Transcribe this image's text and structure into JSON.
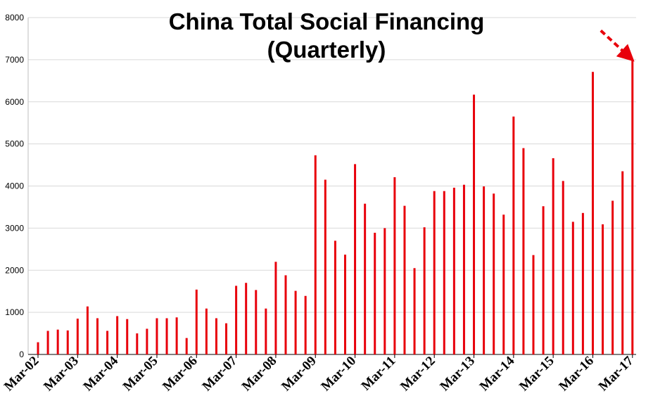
{
  "chart_data": {
    "type": "bar",
    "title_line_1": "China Total Social Financing",
    "title_line_2": "(Quarterly)",
    "xlabel": "",
    "ylabel": "",
    "ylim": [
      0,
      8000
    ],
    "y_ticks": [
      0,
      1000,
      2000,
      3000,
      4000,
      5000,
      6000,
      7000,
      8000
    ],
    "x_tick_labels": [
      "Mar-02",
      "Mar-03",
      "Mar-04",
      "Mar-05",
      "Mar-06",
      "Mar-07",
      "Mar-08",
      "Mar-09",
      "Mar-10",
      "Mar-11",
      "Mar-12",
      "Mar-13",
      "Mar-14",
      "Mar-15",
      "Mar-16",
      "Mar-17"
    ],
    "bar_color": "#e8000b",
    "arrow_color": "#e8000b",
    "grid": "horizontal",
    "legend": "none",
    "annotation": "dashed arrow pointing to latest bar",
    "series": [
      {
        "values": [
          290,
          560,
          590,
          570,
          850,
          1140,
          860,
          560,
          910,
          840,
          500,
          610,
          860,
          860,
          880,
          390,
          1540,
          1090,
          860,
          740,
          1630,
          1700,
          1530,
          1090,
          2200,
          1880,
          1510,
          1390,
          4730,
          4150,
          2700,
          2370,
          4520,
          3580,
          2890,
          3000,
          4210,
          3530,
          2050,
          3020,
          3880,
          3880,
          3960,
          4030,
          6170,
          3990,
          3820,
          3320,
          5650,
          4900,
          2360,
          3520,
          4660,
          4120,
          3150,
          3360,
          6710,
          3090,
          3650,
          4350,
          6990
        ]
      }
    ]
  }
}
